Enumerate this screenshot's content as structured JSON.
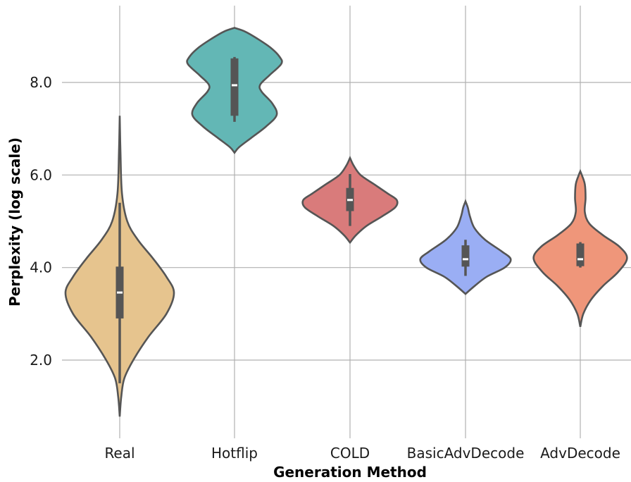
{
  "chart_data": {
    "type": "violin",
    "title": "",
    "xlabel": "Generation Method",
    "ylabel": "Perplexity (log scale)",
    "ylim": [
      0.6,
      9.35
    ],
    "yticks": [
      2.0,
      4.0,
      6.0,
      8.0
    ],
    "ytick_labels": [
      "2.0",
      "4.0",
      "6.0",
      "8.0"
    ],
    "grid": "on",
    "categories": [
      "Real",
      "Hotflip",
      "COLD",
      "BasicAdvDecode",
      "AdvDecode"
    ],
    "violins": [
      {
        "category": "Real",
        "color": "#e6c48e",
        "min": 0.78,
        "max": 7.28,
        "q1": 2.9,
        "median": 3.46,
        "q3": 4.02,
        "whisker_low": 1.5,
        "whisker_high": 5.4,
        "profile": [
          [
            0.78,
            0.0
          ],
          [
            1.2,
            0.02
          ],
          [
            1.6,
            0.06
          ],
          [
            2.0,
            0.18
          ],
          [
            2.5,
            0.38
          ],
          [
            3.0,
            0.62
          ],
          [
            3.45,
            0.72
          ],
          [
            3.8,
            0.62
          ],
          [
            4.2,
            0.44
          ],
          [
            4.6,
            0.24
          ],
          [
            5.0,
            0.1
          ],
          [
            5.6,
            0.03
          ],
          [
            6.5,
            0.01
          ],
          [
            7.28,
            0.0
          ]
        ]
      },
      {
        "category": "Hotflip",
        "color": "#63b7b5",
        "min": 6.48,
        "max": 9.18,
        "q1": 7.28,
        "median": 7.94,
        "q3": 8.52,
        "whisker_low": 7.15,
        "whisker_high": 8.55,
        "profile": [
          [
            6.48,
            0.0
          ],
          [
            6.6,
            0.06
          ],
          [
            6.8,
            0.22
          ],
          [
            7.05,
            0.42
          ],
          [
            7.3,
            0.56
          ],
          [
            7.55,
            0.5
          ],
          [
            7.8,
            0.36
          ],
          [
            7.95,
            0.34
          ],
          [
            8.15,
            0.46
          ],
          [
            8.4,
            0.62
          ],
          [
            8.55,
            0.6
          ],
          [
            8.75,
            0.48
          ],
          [
            8.95,
            0.3
          ],
          [
            9.1,
            0.14
          ],
          [
            9.18,
            0.0
          ]
        ]
      },
      {
        "category": "COLD",
        "color": "#d97b7b",
        "min": 4.54,
        "max": 6.37,
        "q1": 5.22,
        "median": 5.46,
        "q3": 5.72,
        "whisker_low": 4.9,
        "whisker_high": 6.02,
        "profile": [
          [
            4.54,
            0.0
          ],
          [
            4.7,
            0.08
          ],
          [
            4.9,
            0.22
          ],
          [
            5.1,
            0.42
          ],
          [
            5.3,
            0.6
          ],
          [
            5.46,
            0.62
          ],
          [
            5.6,
            0.5
          ],
          [
            5.8,
            0.32
          ],
          [
            6.0,
            0.14
          ],
          [
            6.2,
            0.05
          ],
          [
            6.37,
            0.0
          ]
        ]
      },
      {
        "category": "BasicAdvDecode",
        "color": "#9aaef4",
        "min": 3.43,
        "max": 5.43,
        "q1": 4.02,
        "median": 4.18,
        "q3": 4.48,
        "whisker_low": 3.82,
        "whisker_high": 4.6,
        "profile": [
          [
            3.43,
            0.0
          ],
          [
            3.6,
            0.12
          ],
          [
            3.8,
            0.28
          ],
          [
            4.0,
            0.52
          ],
          [
            4.18,
            0.6
          ],
          [
            4.35,
            0.48
          ],
          [
            4.6,
            0.26
          ],
          [
            4.85,
            0.12
          ],
          [
            5.1,
            0.06
          ],
          [
            5.3,
            0.03
          ],
          [
            5.43,
            0.0
          ]
        ]
      },
      {
        "category": "AdvDecode",
        "color": "#ef967a",
        "min": 2.72,
        "max": 6.08,
        "q1": 4.03,
        "median": 4.18,
        "q3": 4.52,
        "whisker_low": 4.0,
        "whisker_high": 4.55,
        "profile": [
          [
            2.72,
            0.0
          ],
          [
            3.0,
            0.04
          ],
          [
            3.3,
            0.14
          ],
          [
            3.6,
            0.3
          ],
          [
            3.9,
            0.5
          ],
          [
            4.2,
            0.62
          ],
          [
            4.45,
            0.52
          ],
          [
            4.7,
            0.3
          ],
          [
            4.95,
            0.12
          ],
          [
            5.2,
            0.06
          ],
          [
            5.5,
            0.07
          ],
          [
            5.8,
            0.06
          ],
          [
            6.0,
            0.02
          ],
          [
            6.08,
            0.0
          ]
        ]
      }
    ]
  }
}
